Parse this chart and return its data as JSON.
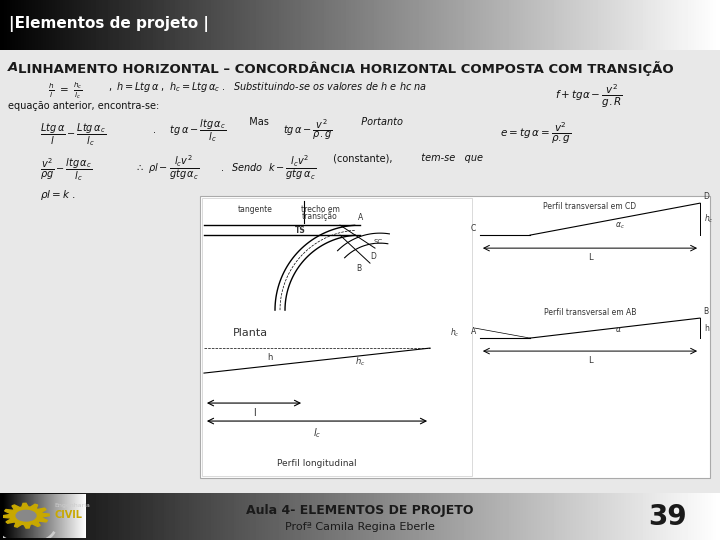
{
  "header_text": "|Elementos de projeto |",
  "header_bg": "#808080",
  "header_text_color": "#ffffff",
  "title_line1": "A",
  "title_line1b": "LINHAMENTO HORIZONTAL – CONCORDÂNCIA HORIZONTAL COMPOSTA COM TRANSIÇÃO",
  "footer_bg_left": "#3a3a3a",
  "footer_bg_right": "#888888",
  "footer_text1": "Aula 4- ELEMENTOS DE PROJETO",
  "footer_text2": "Profª Camila Regina Eberle",
  "footer_number": "39",
  "slide_bg": "#e8e8e8",
  "content_bg": "#f2f2f2",
  "white": "#ffffff",
  "dark": "#1a1a1a",
  "gray": "#555555"
}
